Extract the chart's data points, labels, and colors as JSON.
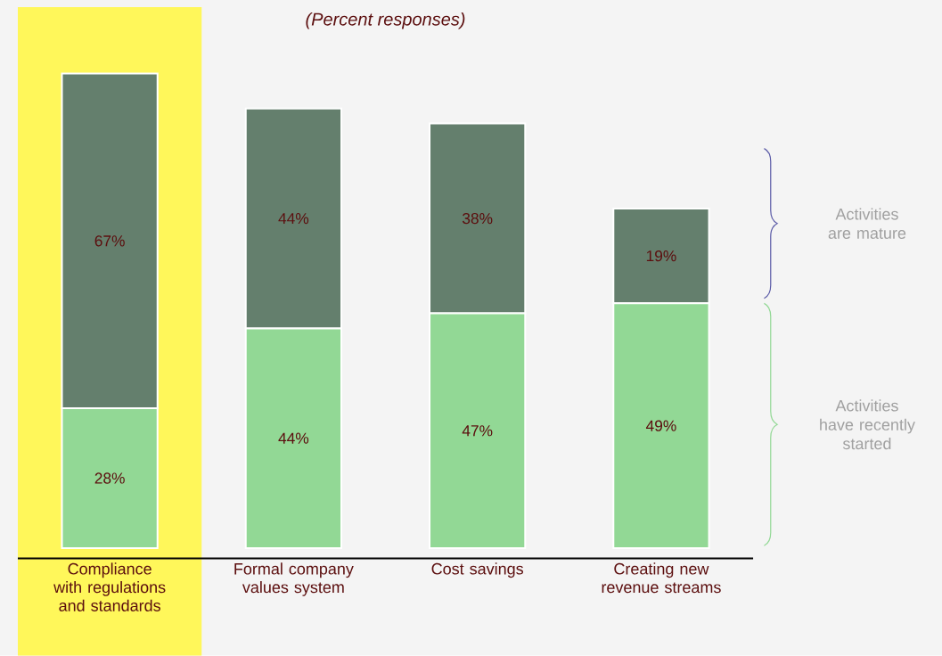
{
  "chart_data": {
    "type": "bar",
    "title": "(Percent responses)",
    "stacked": true,
    "legend": "right",
    "categories": [
      "Compliance with regulations and standards",
      "Formal company values system",
      "Cost savings",
      "Creating new revenue streams"
    ],
    "series": [
      {
        "name": "Activities have recently started",
        "color": "#92d895",
        "values": [
          28,
          44,
          47,
          49
        ],
        "value_labels": [
          "28%",
          "44%",
          "47%",
          "49%"
        ]
      },
      {
        "name": "Activities are mature",
        "color": "#647f6d",
        "values": [
          67,
          44,
          38,
          19
        ],
        "value_labels": [
          "67%",
          "44%",
          "38%",
          "19%"
        ]
      }
    ],
    "bands": [
      {
        "axis": "x",
        "from": "Compliance with regulations and standards",
        "to": "Compliance with regulations and standards",
        "color": "#fff75a"
      }
    ]
  }
}
